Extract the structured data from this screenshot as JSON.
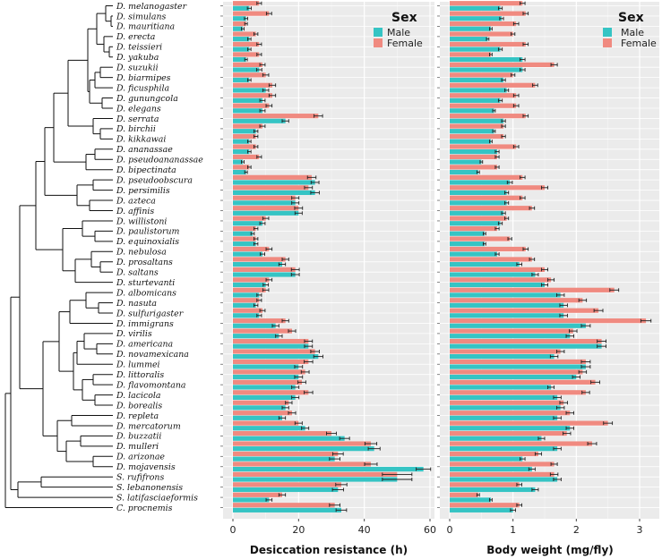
{
  "chart_data": {
    "type": "bar",
    "orientation": "horizontal",
    "legend": {
      "title": "Sex",
      "placement": "top-right",
      "entries": [
        {
          "name": "Male",
          "color": "#35C4C4"
        },
        {
          "name": "Female",
          "color": "#F08A80"
        }
      ]
    },
    "species": [
      "D. melanogaster",
      "D. simulans",
      "D. mauritiana",
      "D. erecta",
      "D. teissieri",
      "D. yakuba",
      "D. suzukii",
      "D. biarmipes",
      "D. ficusphila",
      "D. gunungcola",
      "D. elegans",
      "D. serrata",
      "D. birchii",
      "D. kikkawai",
      "D. ananassae",
      "D. pseudoananassae",
      "D. bipectinata",
      "D. pseudoobscura",
      "D. persimilis",
      "D. azteca",
      "D. affinis",
      "D. willistoni",
      "D. paulistorum",
      "D. equinoxialis",
      "D. nebulosa",
      "D. prosaltans",
      "D. saltans",
      "D. sturtevanti",
      "D. albomicans",
      "D. nasuta",
      "D. sulfurigaster",
      "D. immigrans",
      "D. virilis",
      "D. americana",
      "D. novamexicana",
      "D. lummei",
      "D. littoralis",
      "D. flavomontana",
      "D. lacicola",
      "D. borealis",
      "D. repleta",
      "D. mercatorum",
      "D. buzzatii",
      "D. mulleri",
      "D. arizonae",
      "D. mojavensis",
      "S. rufifrons",
      "S. lebanonensis",
      "S. latifasciaeformis",
      "C. procnemis"
    ],
    "panels": [
      {
        "name": "desiccation",
        "xlabel": "Desiccation resistance (h)",
        "xlim": [
          0,
          65
        ],
        "ticks": [
          0,
          20,
          40,
          60
        ],
        "male": [
          5,
          4,
          3,
          5,
          5,
          4,
          8,
          5,
          10,
          9,
          9,
          16,
          7,
          5,
          5,
          3,
          4,
          25,
          25,
          19,
          20,
          9,
          6,
          7,
          9,
          15,
          19,
          10,
          8,
          7,
          8,
          13,
          14,
          23,
          26,
          20,
          20,
          19,
          19,
          16,
          15,
          22,
          34,
          43,
          31,
          58,
          50,
          32,
          11,
          33
        ],
        "female": [
          8,
          11,
          4,
          7,
          8,
          8,
          9,
          10,
          12,
          12,
          11,
          26,
          9,
          7,
          7,
          8,
          5,
          24,
          23,
          19,
          20,
          10,
          7,
          7,
          11,
          16,
          19,
          11,
          10,
          8,
          9,
          16,
          18,
          23,
          25,
          23,
          22,
          21,
          23,
          17,
          18,
          20,
          30,
          42,
          32,
          42,
          50,
          33,
          15,
          31
        ],
        "male_err": [
          0.6,
          0.5,
          0.4,
          0.5,
          0.5,
          0.4,
          0.8,
          0.5,
          0.9,
          0.8,
          0.8,
          1.0,
          0.6,
          0.5,
          0.5,
          0.4,
          0.4,
          1.2,
          1.3,
          1.1,
          1.1,
          0.8,
          0.5,
          0.6,
          0.7,
          1.0,
          1.2,
          0.8,
          0.7,
          0.6,
          0.7,
          1.0,
          1.0,
          1.2,
          1.4,
          1.2,
          1.2,
          1.1,
          1.1,
          1.0,
          1.0,
          1.1,
          1.5,
          1.8,
          1.6,
          2.2,
          4.5,
          1.7,
          0.9,
          1.6
        ],
        "female_err": [
          0.7,
          0.8,
          0.4,
          0.6,
          0.7,
          0.7,
          0.8,
          0.9,
          1.0,
          1.0,
          0.9,
          1.3,
          0.8,
          0.6,
          0.6,
          0.7,
          0.5,
          1.3,
          1.2,
          1.1,
          1.2,
          0.9,
          0.6,
          0.6,
          0.9,
          1.0,
          1.2,
          0.9,
          0.9,
          0.7,
          0.8,
          1.0,
          1.1,
          1.2,
          1.3,
          1.3,
          1.2,
          1.2,
          1.3,
          1.0,
          1.1,
          1.1,
          1.5,
          1.8,
          1.6,
          1.9,
          4.5,
          1.7,
          1.0,
          1.6
        ]
      },
      {
        "name": "weight",
        "xlabel": "Body weight (mg/fly)",
        "xlim": [
          0,
          3.3
        ],
        "ticks": [
          0,
          1,
          2,
          3
        ],
        "male": [
          0.8,
          0.82,
          0.65,
          0.6,
          0.8,
          1.15,
          1.15,
          0.85,
          0.9,
          0.8,
          0.7,
          0.85,
          0.7,
          0.65,
          0.75,
          0.5,
          0.45,
          0.95,
          0.9,
          0.9,
          0.85,
          0.8,
          0.55,
          0.55,
          0.75,
          1.1,
          1.35,
          1.5,
          1.75,
          1.8,
          1.8,
          2.15,
          1.9,
          2.4,
          1.65,
          2.15,
          2.0,
          1.6,
          1.7,
          1.75,
          1.7,
          1.9,
          1.45,
          1.7,
          1.15,
          1.3,
          1.7,
          1.35,
          0.65,
          1.0
        ],
        "female": [
          1.15,
          1.2,
          1.05,
          1.0,
          1.2,
          0.65,
          1.65,
          1.0,
          1.35,
          1.05,
          1.05,
          1.2,
          0.85,
          0.85,
          1.05,
          0.75,
          0.75,
          1.15,
          1.5,
          1.15,
          1.3,
          0.9,
          0.75,
          0.95,
          1.2,
          1.3,
          1.5,
          1.6,
          2.6,
          2.1,
          2.35,
          3.1,
          1.95,
          2.4,
          1.75,
          2.15,
          2.1,
          2.3,
          2.15,
          1.8,
          1.9,
          2.5,
          1.85,
          2.25,
          1.4,
          1.65,
          1.65,
          1.1,
          0.45,
          1.1
        ],
        "male_err": [
          0.03,
          0.03,
          0.02,
          0.02,
          0.03,
          0.04,
          0.04,
          0.03,
          0.03,
          0.03,
          0.02,
          0.03,
          0.02,
          0.02,
          0.03,
          0.02,
          0.02,
          0.04,
          0.03,
          0.03,
          0.03,
          0.03,
          0.02,
          0.02,
          0.03,
          0.04,
          0.05,
          0.05,
          0.06,
          0.06,
          0.06,
          0.07,
          0.06,
          0.07,
          0.06,
          0.07,
          0.06,
          0.05,
          0.06,
          0.06,
          0.06,
          0.06,
          0.05,
          0.06,
          0.04,
          0.05,
          0.06,
          0.05,
          0.02,
          0.04
        ],
        "female_err": [
          0.04,
          0.04,
          0.04,
          0.03,
          0.04,
          0.02,
          0.05,
          0.03,
          0.04,
          0.04,
          0.04,
          0.04,
          0.03,
          0.03,
          0.04,
          0.03,
          0.03,
          0.04,
          0.05,
          0.04,
          0.04,
          0.03,
          0.03,
          0.03,
          0.04,
          0.04,
          0.05,
          0.05,
          0.07,
          0.06,
          0.07,
          0.08,
          0.06,
          0.07,
          0.06,
          0.07,
          0.06,
          0.07,
          0.06,
          0.06,
          0.06,
          0.07,
          0.06,
          0.07,
          0.05,
          0.05,
          0.06,
          0.04,
          0.02,
          0.04
        ]
      }
    ]
  }
}
